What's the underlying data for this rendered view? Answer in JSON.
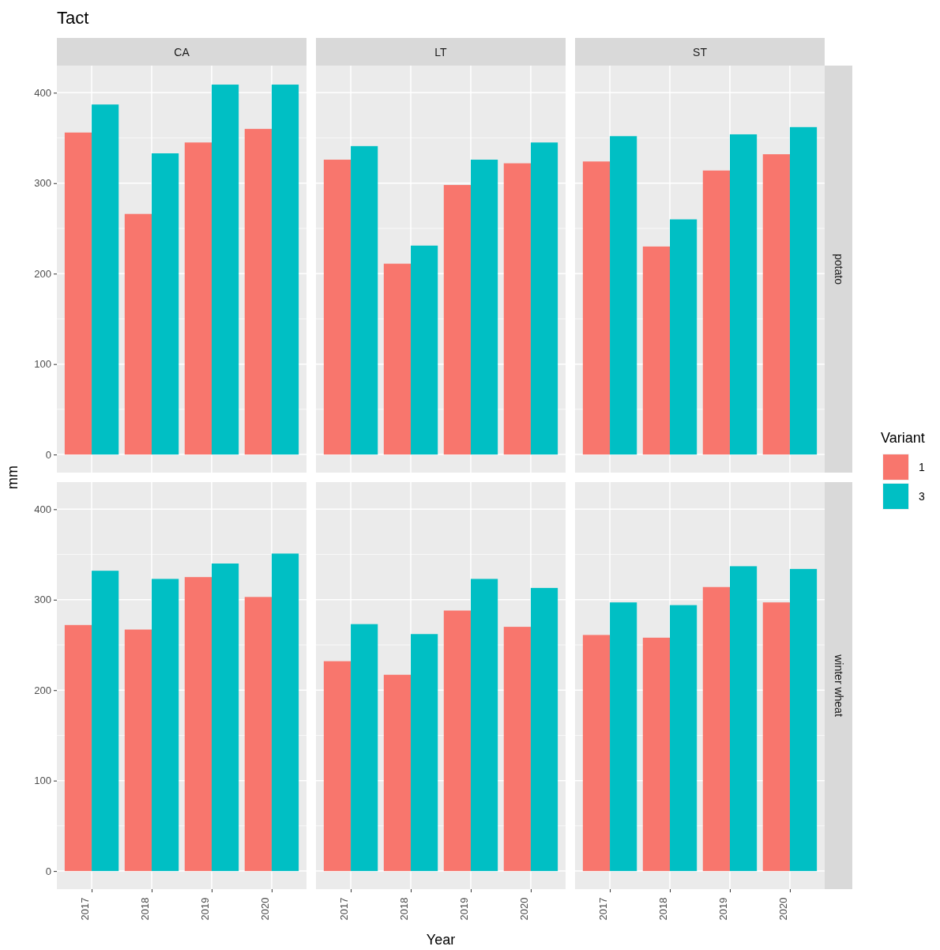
{
  "chart_data": [
    {
      "type": "bar",
      "title": "CA",
      "annotations": [
        "Tact"
      ],
      "categories": [
        "2017",
        "2018",
        "2019",
        "2020"
      ],
      "ylim": [
        -20,
        430
      ],
      "yticks": [
        0,
        100,
        200,
        300,
        400
      ],
      "grid": true,
      "tick_labels": "y",
      "legend": false,
      "series": [
        {
          "color": "#f8766d",
          "values": [
            356,
            266,
            345,
            360
          ]
        },
        {
          "color": "#00bfc4",
          "values": [
            387,
            333,
            409,
            409
          ]
        }
      ]
    },
    {
      "type": "bar",
      "title": "LT",
      "categories": [
        "2017",
        "2018",
        "2019",
        "2020"
      ],
      "ylim": [
        -20,
        430
      ],
      "yticks": [
        0,
        100,
        200,
        300,
        400
      ],
      "grid": true,
      "tick_labels": false,
      "legend": false,
      "series": [
        {
          "color": "#f8766d",
          "values": [
            326,
            211,
            298,
            322
          ]
        },
        {
          "color": "#00bfc4",
          "values": [
            341,
            231,
            326,
            345
          ]
        }
      ]
    },
    {
      "type": "bar",
      "title": "ST",
      "y2label": "potato",
      "categories": [
        "2017",
        "2018",
        "2019",
        "2020"
      ],
      "ylim": [
        -20,
        430
      ],
      "yticks": [
        0,
        100,
        200,
        300,
        400
      ],
      "grid": true,
      "tick_labels": false,
      "legend": false,
      "series": [
        {
          "color": "#f8766d",
          "values": [
            324,
            230,
            314,
            332
          ]
        },
        {
          "color": "#00bfc4",
          "values": [
            352,
            260,
            354,
            362
          ]
        }
      ]
    },
    {
      "type": "bar",
      "ylabel": "mm",
      "categories": [
        "2017",
        "2018",
        "2019",
        "2020"
      ],
      "ylim": [
        -20,
        430
      ],
      "yticks": [
        0,
        100,
        200,
        300,
        400
      ],
      "grid": true,
      "legend": false,
      "series": [
        {
          "color": "#f8766d",
          "values": [
            272,
            267,
            325,
            303
          ]
        },
        {
          "color": "#00bfc4",
          "values": [
            332,
            323,
            340,
            351
          ]
        }
      ]
    },
    {
      "type": "bar",
      "xlabel": "Year",
      "categories": [
        "2017",
        "2018",
        "2019",
        "2020"
      ],
      "ylim": [
        -20,
        430
      ],
      "yticks": [
        0,
        100,
        200,
        300,
        400
      ],
      "grid": true,
      "tick_labels": "x",
      "legend": false,
      "series": [
        {
          "color": "#f8766d",
          "values": [
            232,
            217,
            288,
            270
          ]
        },
        {
          "color": "#00bfc4",
          "values": [
            273,
            262,
            323,
            313
          ]
        }
      ]
    },
    {
      "type": "bar",
      "y2label": "winter wheat",
      "legend_title": "Variant",
      "legend": "right",
      "categories": [
        "2017",
        "2018",
        "2019",
        "2020"
      ],
      "ylim": [
        -20,
        430
      ],
      "yticks": [
        0,
        100,
        200,
        300,
        400
      ],
      "grid": true,
      "tick_labels": "x",
      "series": [
        {
          "name": "1",
          "color": "#f8766d",
          "values": [
            261,
            258,
            314,
            297
          ]
        },
        {
          "name": "3",
          "color": "#00bfc4",
          "values": [
            297,
            294,
            337,
            334
          ]
        }
      ]
    }
  ]
}
